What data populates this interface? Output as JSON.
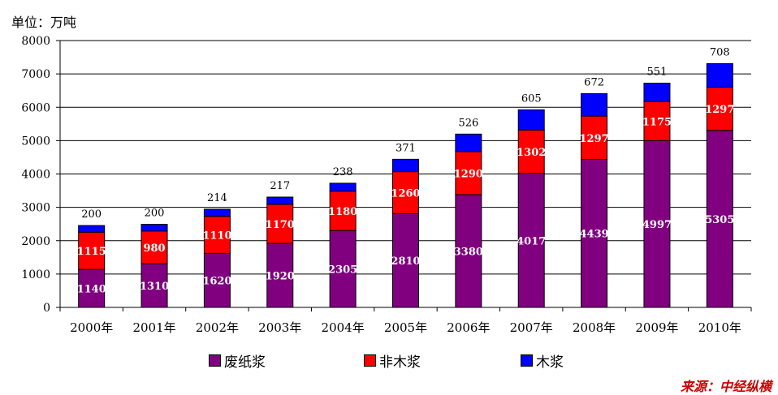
{
  "unit_label": "单位：万吨",
  "source_label": "来源：中经纵横",
  "legend": [
    {
      "label": "废纸浆",
      "color": "#800080"
    },
    {
      "label": "非木浆",
      "color": "#ff0000"
    },
    {
      "label": "木浆",
      "color": "#0000ff"
    }
  ],
  "chart_data": {
    "type": "bar",
    "stacked": true,
    "categories": [
      "2000年",
      "2001年",
      "2002年",
      "2003年",
      "2004年",
      "2005年",
      "2006年",
      "2007年",
      "2008年",
      "2009年",
      "2010年"
    ],
    "series": [
      {
        "name": "废纸浆",
        "color": "#800080",
        "values": [
          1140,
          1310,
          1620,
          1920,
          2305,
          2810,
          3380,
          4017,
          4439,
          4997,
          5305
        ]
      },
      {
        "name": "非木浆",
        "color": "#ff0000",
        "values": [
          1115,
          980,
          1110,
          1170,
          1180,
          1260,
          1290,
          1302,
          1297,
          1175,
          1297
        ]
      },
      {
        "name": "木浆",
        "color": "#0000ff",
        "values": [
          200,
          200,
          214,
          217,
          238,
          371,
          526,
          605,
          672,
          551,
          708
        ]
      }
    ],
    "ylim": [
      0,
      8000
    ],
    "yticks": [
      0,
      1000,
      2000,
      3000,
      4000,
      5000,
      6000,
      7000,
      8000
    ],
    "ylabel": "单位：万吨",
    "grid": true,
    "legend_position": "bottom"
  }
}
